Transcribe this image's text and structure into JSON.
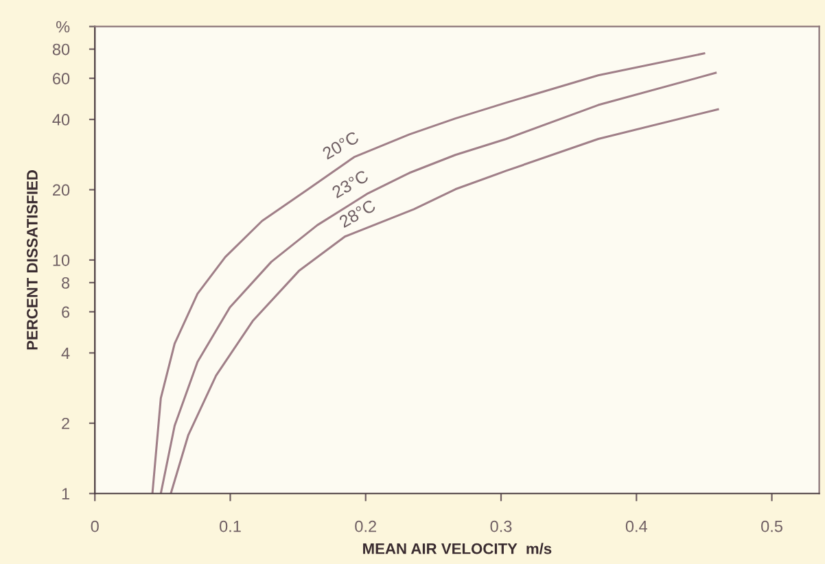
{
  "chart_data": {
    "type": "line",
    "xlabel": "MEAN AIR VELOCITY  m/s",
    "ylabel": "PERCENT DISSATISFIED",
    "log": "y",
    "grid": false,
    "legend": false,
    "marker": "none",
    "line_style": "solid",
    "xlim": [
      0,
      0.535
    ],
    "xticks": [
      {
        "value": 0,
        "label": "0"
      },
      0.1,
      0.2,
      0.3,
      0.4,
      0.5
    ],
    "ylim": [
      1,
      100
    ],
    "yticks": [
      1,
      2,
      4,
      6,
      8,
      10,
      20,
      40,
      60,
      80,
      {
        "value": 100,
        "label": "%"
      }
    ],
    "series": [
      {
        "name": "20°C",
        "color": "#a07f88",
        "x": [
          0.0425,
          0.0487,
          0.0589,
          0.0758,
          0.0963,
          0.1235,
          0.1575,
          0.1915,
          0.2323,
          0.2663,
          0.3038,
          0.3718,
          0.45
        ],
        "values": [
          1,
          2.56,
          4.38,
          7.17,
          10.3,
          14.7,
          20.1,
          27.6,
          34.5,
          40.4,
          47.2,
          61.8,
          76.7
        ]
      },
      {
        "name": "23°C",
        "color": "#a07f88",
        "x": [
          0.0487,
          0.0589,
          0.0758,
          0.0997,
          0.1303,
          0.1643,
          0.2017,
          0.2323,
          0.2663,
          0.3038,
          0.3718,
          0.4585
        ],
        "values": [
          1,
          1.95,
          3.66,
          6.27,
          9.82,
          14.1,
          19.3,
          23.6,
          28.2,
          33,
          46.1,
          63.3
        ]
      },
      {
        "name": "28°C",
        "color": "#a07f88",
        "x": [
          0.0561,
          0.069,
          0.0895,
          0.1166,
          0.1507,
          0.1847,
          0.2357,
          0.2663,
          0.3038,
          0.3718,
          0.4602
        ],
        "values": [
          1,
          1.78,
          3.2,
          5.48,
          8.98,
          12.6,
          16.5,
          20.1,
          24.1,
          33,
          44.2
        ]
      }
    ]
  }
}
